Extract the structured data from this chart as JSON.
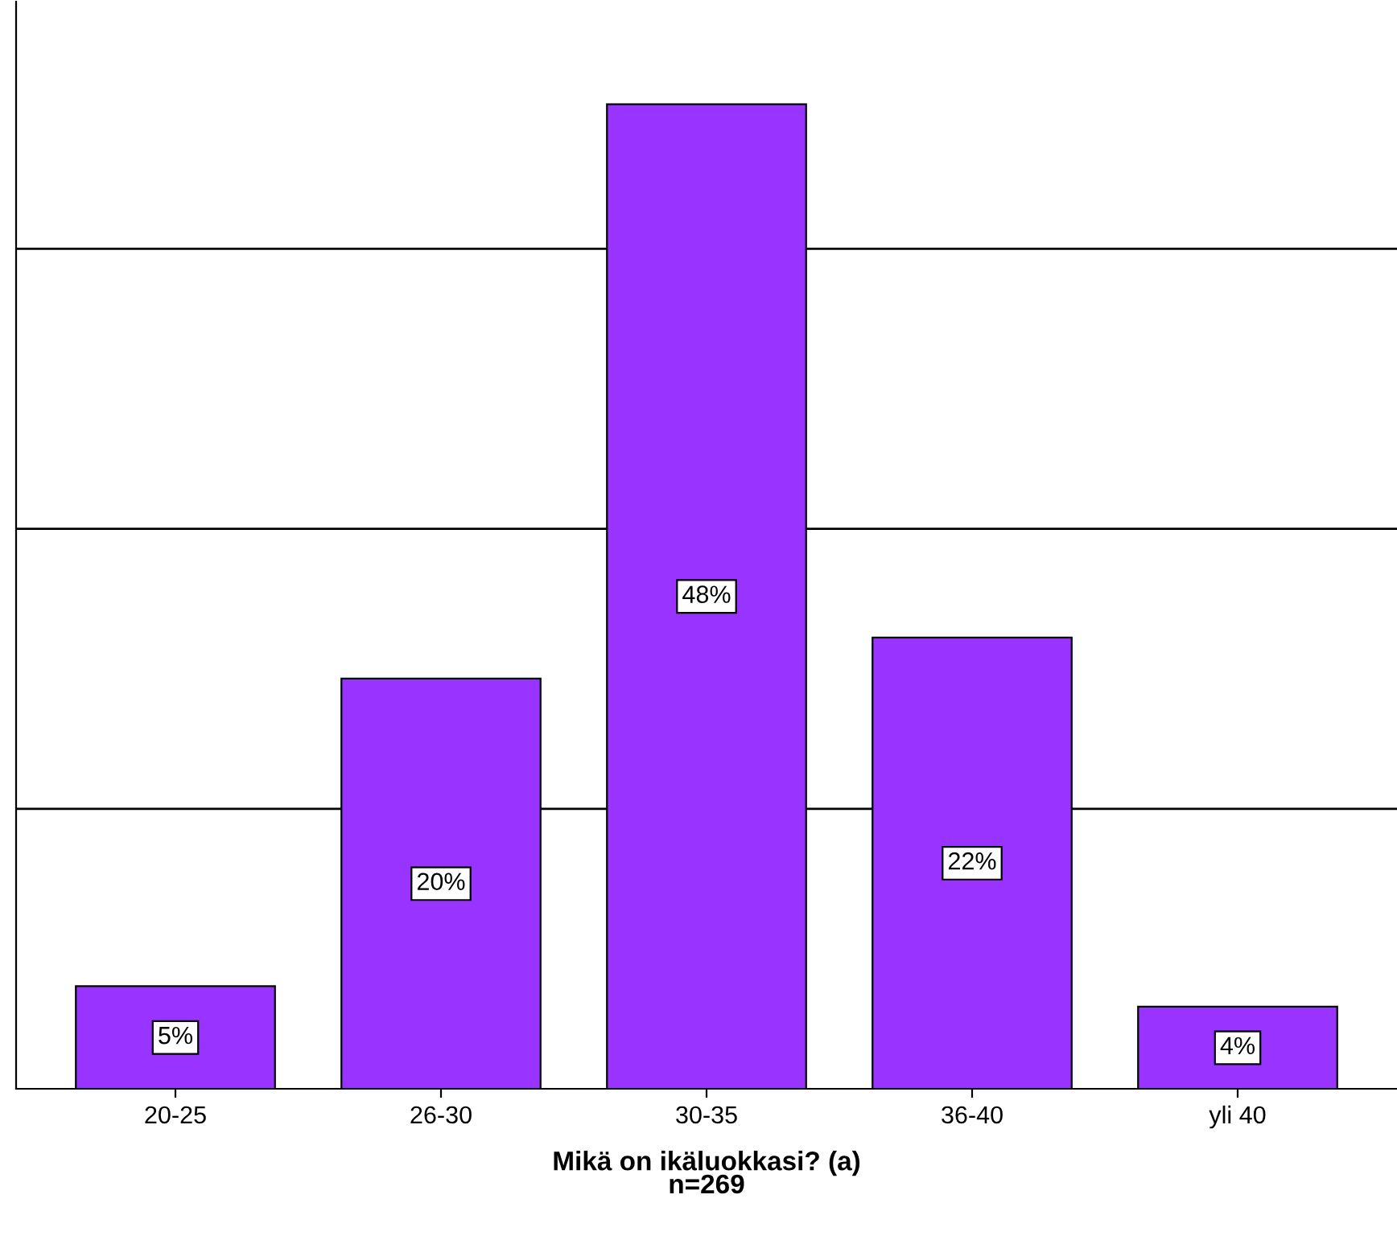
{
  "chart_data": {
    "type": "bar",
    "xlabel": "Mikä on ikäluokkasi? (a)\nn=269",
    "categories": [
      "20-25",
      "26-30",
      "30-35",
      "36-40",
      "yli 40"
    ],
    "values": [
      5,
      20,
      48,
      22,
      4
    ],
    "value_labels": [
      "5%",
      "20%",
      "48%",
      "22%",
      "4%"
    ],
    "color": "#9933ff",
    "ylim": [
      0,
      53
    ],
    "yticks": [
      {
        "value": 13.65,
        "label": null
      },
      {
        "value": 27.3,
        "label": null
      },
      {
        "value": 40.95,
        "label": null
      }
    ],
    "tick_labels": "x",
    "grid": "y"
  }
}
